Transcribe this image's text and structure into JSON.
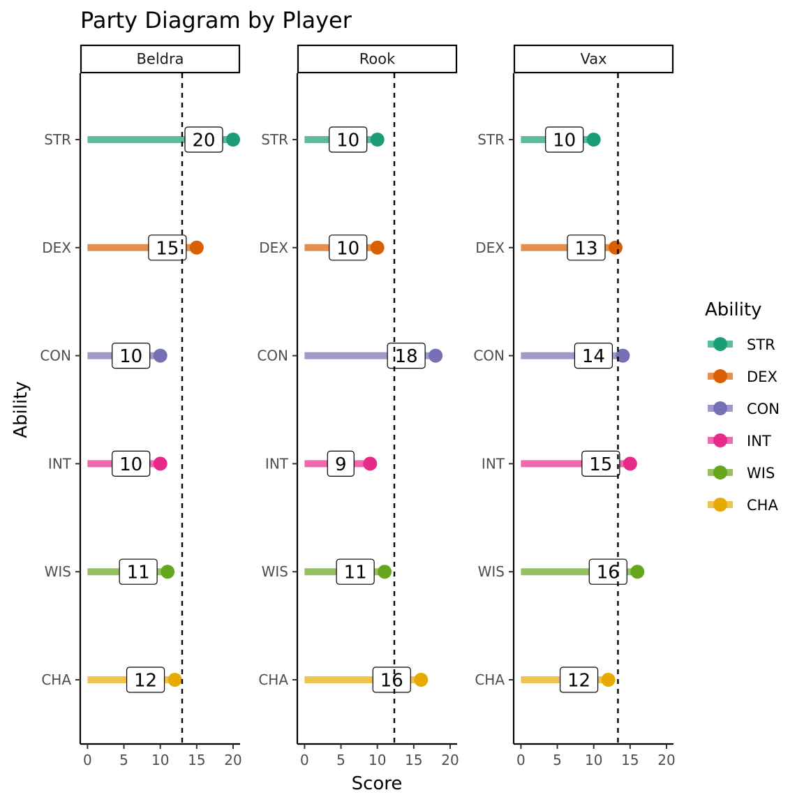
{
  "chart_data": {
    "type": "lollipop",
    "title": "Party Diagram by Player",
    "xlabel": "Score",
    "ylabel": "Ability",
    "xlim": [
      0,
      20
    ],
    "x_ticks": [
      0,
      5,
      10,
      15,
      20
    ],
    "grid": false,
    "abilities": [
      "STR",
      "DEX",
      "CON",
      "INT",
      "WIS",
      "CHA"
    ],
    "colors": {
      "STR": "#1B9E77",
      "DEX": "#D95F02",
      "CON": "#7570B3",
      "INT": "#E7298A",
      "WIS": "#66A61E",
      "CHA": "#E6AB02"
    },
    "legend": {
      "title": "Ability",
      "position": "right",
      "entries": [
        "STR",
        "DEX",
        "CON",
        "INT",
        "WIS",
        "CHA"
      ]
    },
    "panels": [
      {
        "name": "Beldra",
        "reference_line": 13.0,
        "values": [
          20,
          15,
          10,
          10,
          11,
          12
        ]
      },
      {
        "name": "Rook",
        "reference_line": 12.33,
        "values": [
          10,
          10,
          18,
          9,
          11,
          16
        ]
      },
      {
        "name": "Vax",
        "reference_line": 13.33,
        "values": [
          10,
          13,
          14,
          15,
          16,
          12
        ]
      }
    ]
  }
}
